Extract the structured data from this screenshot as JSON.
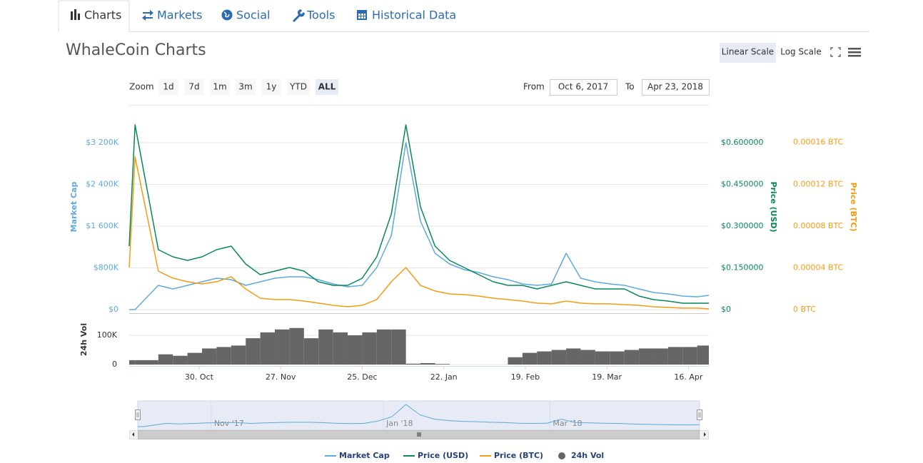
{
  "tabs": [
    "Charts",
    "Markets",
    "Social",
    "Tools",
    "Historical Data"
  ],
  "title": "WhaleCoin Charts",
  "scale_buttons": [
    "Linear Scale",
    "Log Scale"
  ],
  "zoom": {
    "label": "Zoom",
    "buttons": [
      "1d",
      "7d",
      "1m",
      "3m",
      "1y",
      "YTD",
      "ALL"
    ],
    "active": 6
  },
  "range": {
    "from_label": "From",
    "from": "Oct 6, 2017",
    "to_label": "To",
    "to": "Apr 23, 2018"
  },
  "chart_data": {
    "type": "line",
    "x": [
      "2017-10-06",
      "2017-10-08",
      "2017-10-16",
      "2017-10-21",
      "2017-10-26",
      "2017-10-31",
      "2017-11-05",
      "2017-11-10",
      "2017-11-15",
      "2017-11-20",
      "2017-11-25",
      "2017-11-30",
      "2017-12-05",
      "2017-12-10",
      "2017-12-15",
      "2017-12-20",
      "2017-12-25",
      "2017-12-30",
      "2018-01-04",
      "2018-01-09",
      "2018-01-14",
      "2018-01-19",
      "2018-01-24",
      "2018-01-29",
      "2018-02-03",
      "2018-02-08",
      "2018-02-13",
      "2018-02-18",
      "2018-02-23",
      "2018-02-28",
      "2018-03-05",
      "2018-03-10",
      "2018-03-15",
      "2018-03-20",
      "2018-03-25",
      "2018-03-30",
      "2018-04-04",
      "2018-04-09",
      "2018-04-14",
      "2018-04-19",
      "2018-04-23"
    ],
    "xlim": [
      "2017-10-06",
      "2018-04-23"
    ],
    "xticks": [
      {
        "value": "2017-10-30",
        "label": "30. Oct"
      },
      {
        "value": "2017-11-27",
        "label": "27. Nov"
      },
      {
        "value": "2017-12-25",
        "label": "25. Dec"
      },
      {
        "value": "2018-01-22",
        "label": "22. Jan"
      },
      {
        "value": "2018-02-19",
        "label": "19. Feb"
      },
      {
        "value": "2018-03-19",
        "label": "19. Mar"
      },
      {
        "value": "2018-04-16",
        "label": "16. Apr"
      }
    ],
    "ylabel": "Market Cap",
    "ylim": [
      0,
      3925000
    ],
    "yticks": [
      {
        "value": 0,
        "label": "$0"
      },
      {
        "value": 800000,
        "label": "$800K"
      },
      {
        "value": 1600000,
        "label": "$1 600K"
      },
      {
        "value": 2400000,
        "label": "$2 400K"
      },
      {
        "value": 3200000,
        "label": "$3 200K"
      }
    ],
    "y2label": "Price (USD)",
    "y2lim": [
      0,
      0.736
    ],
    "y2ticks": [
      {
        "value": 0,
        "label": "$0"
      },
      {
        "value": 0.15,
        "label": "$0.150000"
      },
      {
        "value": 0.3,
        "label": "$0.300000"
      },
      {
        "value": 0.45,
        "label": "$0.450000"
      },
      {
        "value": 0.6,
        "label": "$0.600000"
      }
    ],
    "y3label": "Price (BTC)",
    "y3lim": [
      0,
      0.000196
    ],
    "y3ticks": [
      {
        "value": 0,
        "label": "0 BTC"
      },
      {
        "value": 4e-05,
        "label": "0.00004 BTC"
      },
      {
        "value": 8e-05,
        "label": "0.00008 BTC"
      },
      {
        "value": 0.00012,
        "label": "0.00012 BTC"
      },
      {
        "value": 0.00016,
        "label": "0.00016 BTC"
      }
    ],
    "volume_label": "24h Vol",
    "volume_lim": [
      0,
      161000
    ],
    "volume_ticks": [
      0,
      {
        "value": 100000,
        "label": "100K"
      }
    ],
    "grid": true,
    "series": [
      {
        "name": "Market Cap",
        "color": "#5ea9dd",
        "axis": "y",
        "values": [
          0,
          0,
          465000,
          397000,
          465000,
          533000,
          602000,
          574000,
          465000,
          533000,
          602000,
          629000,
          629000,
          574000,
          492000,
          438000,
          465000,
          807000,
          1422000,
          3200000,
          1696000,
          1080000,
          875000,
          766000,
          711000,
          629000,
          574000,
          492000,
          465000,
          492000,
          1080000,
          602000,
          533000,
          492000,
          465000,
          397000,
          328000,
          301000,
          260000,
          246000,
          274000
        ]
      },
      {
        "name": "Price (USD)",
        "color": "#07875a",
        "axis": "y2",
        "values": [
          0.2282,
          0.6641,
          0.2154,
          0.1897,
          0.1769,
          0.1897,
          0.2154,
          0.2282,
          0.1641,
          0.1256,
          0.1385,
          0.1513,
          0.1385,
          0.1,
          0.0872,
          0.0872,
          0.1128,
          0.1897,
          0.3436,
          0.6641,
          0.3692,
          0.2282,
          0.1769,
          0.1513,
          0.1256,
          0.1,
          0.0872,
          0.0872,
          0.0744,
          0.0872,
          0.1,
          0.0872,
          0.0744,
          0.0744,
          0.0744,
          0.0487,
          0.0359,
          0.0308,
          0.0231,
          0.0231,
          0.0231
        ]
      },
      {
        "name": "Price (BTC)",
        "color": "#f39c12",
        "axis": "y3",
        "values": [
          4.03e-05,
          0.0001463,
          3.69e-05,
          3.01e-05,
          2.67e-05,
          2.46e-05,
          2.67e-05,
          3.15e-05,
          1.98e-05,
          1.09e-05,
          9.6e-06,
          9.6e-06,
          8.2e-06,
          6.2e-06,
          4.1e-06,
          2.7e-06,
          4.1e-06,
          9.6e-06,
          2.67e-05,
          4.03e-05,
          2.32e-05,
          1.78e-05,
          1.5e-05,
          1.44e-05,
          1.3e-05,
          1.09e-05,
          9.6e-06,
          8.2e-06,
          6.2e-06,
          5.5e-06,
          8.2e-06,
          6.2e-06,
          5.5e-06,
          5.5e-06,
          4.8e-06,
          4.1e-06,
          2.7e-06,
          2.1e-06,
          1.4e-06,
          1.4e-06,
          7e-07
        ]
      },
      {
        "name": "24h Vol",
        "color": "#666666",
        "axis": "volume",
        "values": [
          15000,
          15000,
          35000,
          30000,
          40000,
          55000,
          60000,
          65000,
          90000,
          110000,
          120000,
          125000,
          90000,
          120000,
          110000,
          100000,
          110000,
          120000,
          120000,
          3000,
          5000,
          2000,
          0,
          0,
          0,
          0,
          25000,
          40000,
          45000,
          50000,
          55000,
          50000,
          45000,
          45000,
          50000,
          55000,
          55000,
          60000,
          60000,
          65000,
          65000
        ]
      }
    ],
    "navigator": {
      "xticks": [
        {
          "value": "2017-11-01",
          "label": "Nov '17"
        },
        {
          "value": "2018-01-01",
          "label": "Jan '18"
        },
        {
          "value": "2018-03-01",
          "label": "Mar '18"
        }
      ]
    }
  }
}
